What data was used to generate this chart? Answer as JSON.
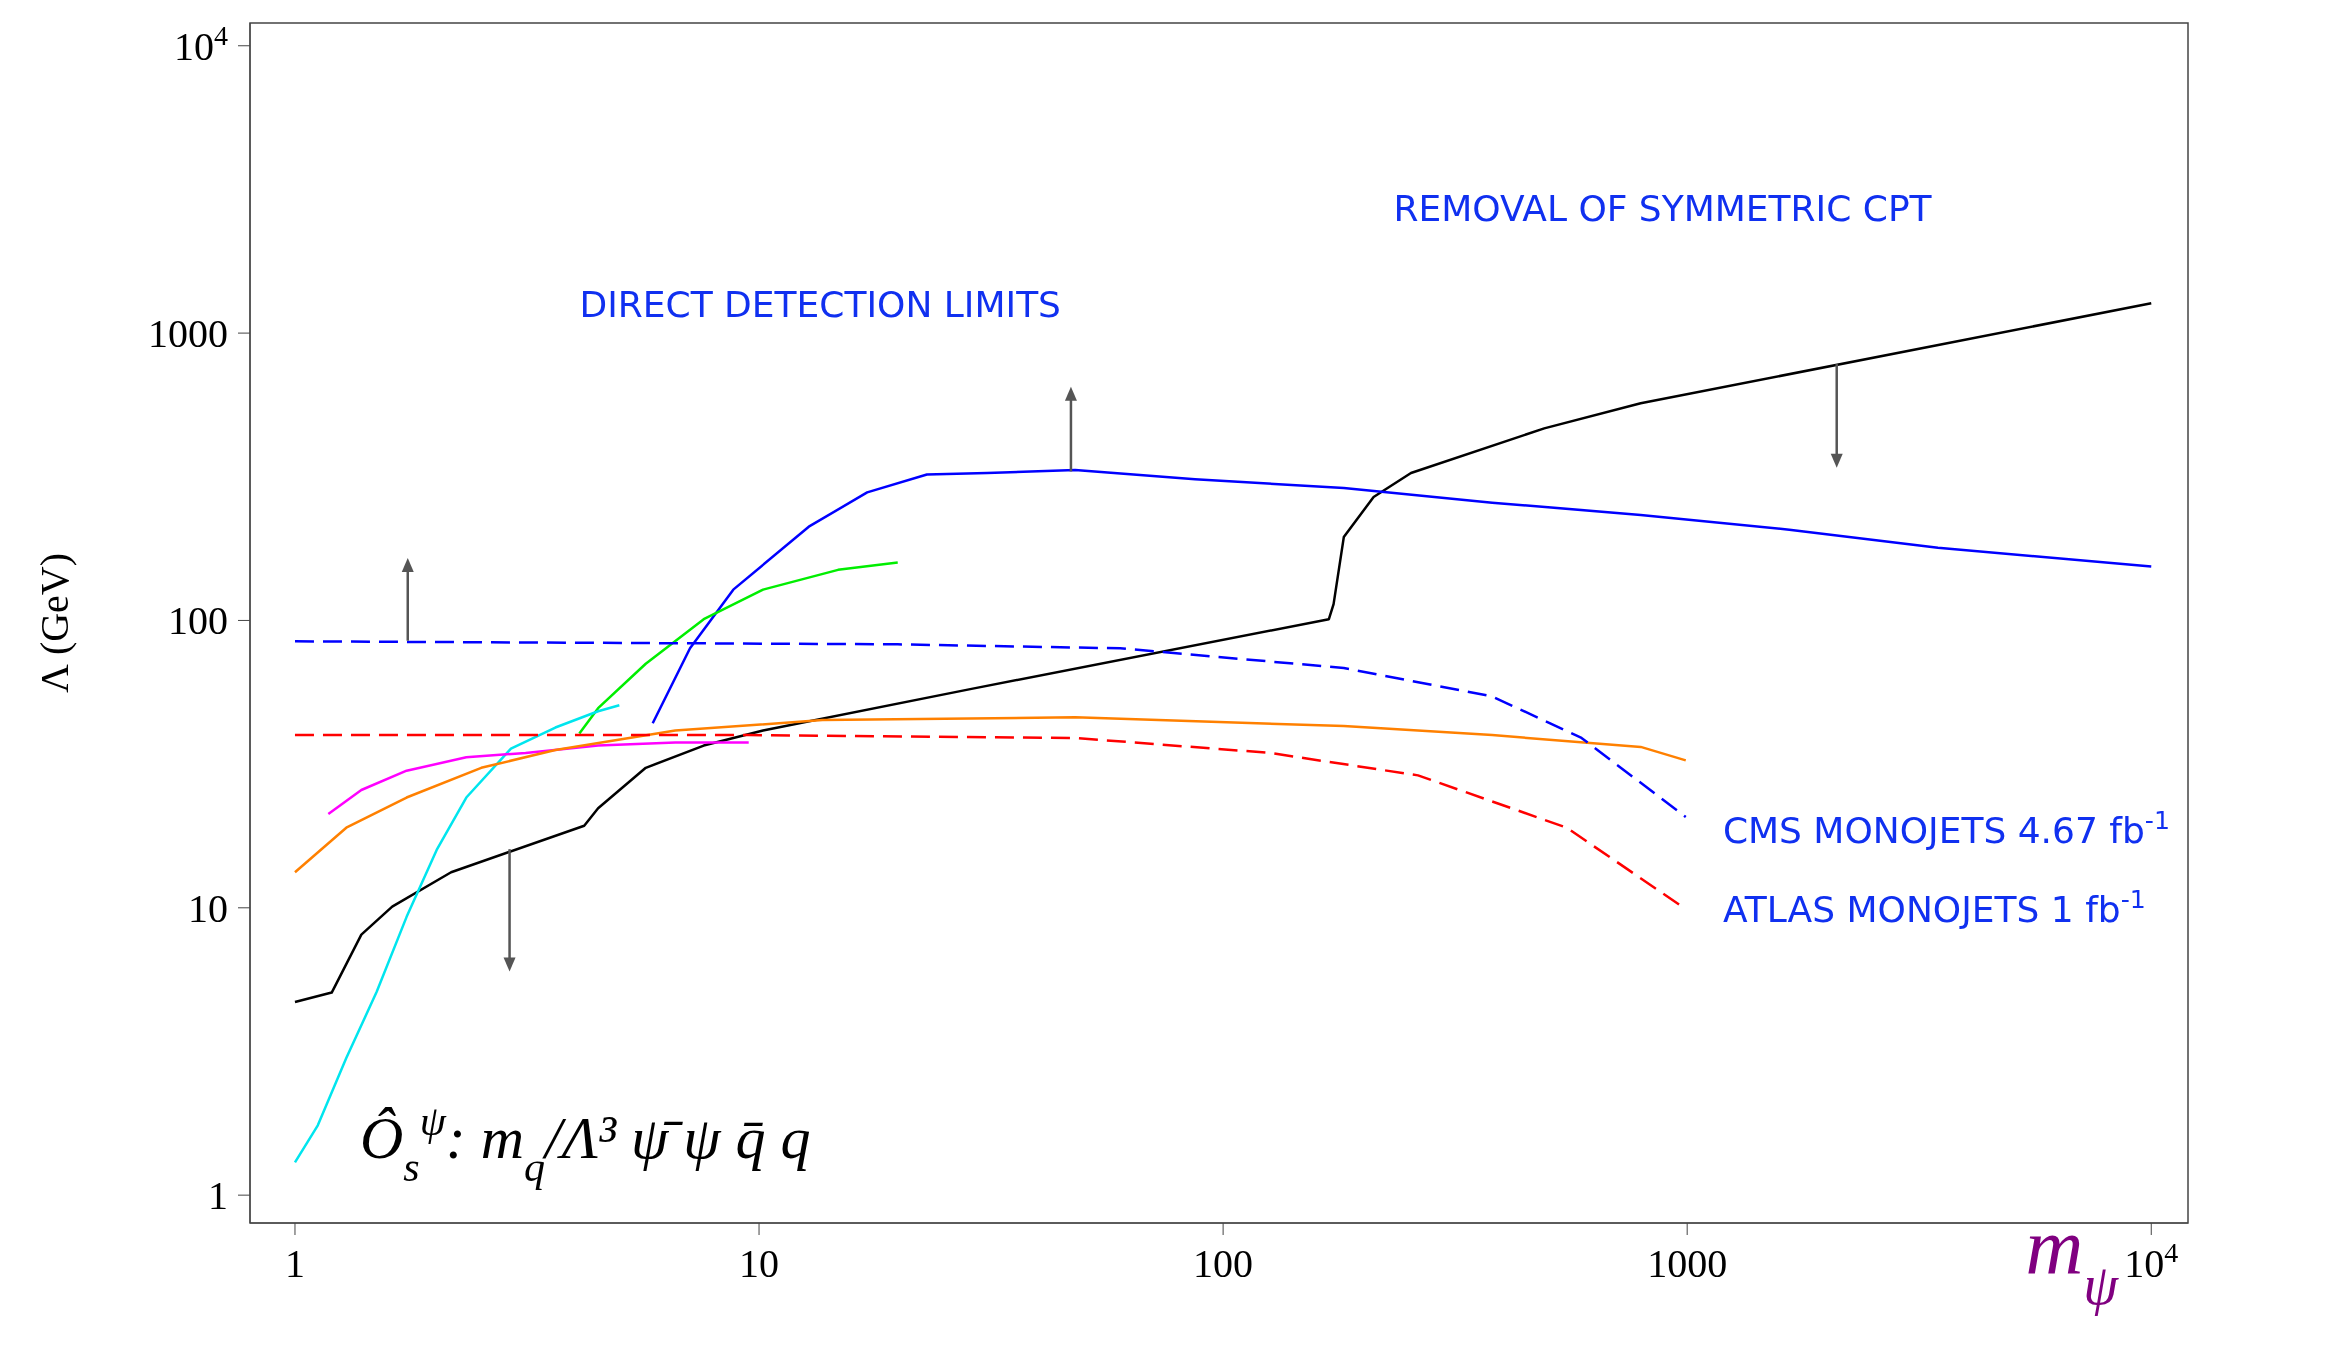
{
  "chart_data": {
    "type": "line",
    "xlabel": "m$_{ψ}$",
    "ylabel": "Λ (GeV)",
    "log": "xy",
    "marker": "none",
    "xlim": [
      0.8,
      12000
    ],
    "ylim": [
      0.8,
      12000
    ],
    "xticks": [
      1,
      10,
      100,
      1000,
      {
        "value": 10000,
        "label": "10$^{4}$"
      }
    ],
    "yticks": [
      1,
      10,
      100,
      1000,
      {
        "value": 10000,
        "label": "10$^{4}$"
      }
    ],
    "annotations": [
      "DIRECT DETECTION LIMITS",
      "REMOVAL OF SYMMETRIC CPT",
      "CMS MONOJETS 4.67 fb$^{-1}$",
      "ATLAS MONOJETS 1 fb$^{-1}$",
      "Ô$_{s}$$^{ψ}$:  m$_{q}$/Λ³  ψ̄ ψ q̄ q"
    ],
    "series": [
      {
        "color": "#000000",
        "line_style": "solid",
        "x": [
          1,
          1.2,
          1.39,
          1.62,
          2.17,
          4.2,
          4.5,
          5.7,
          7.6,
          10.2,
          28.7,
          169,
          173,
          182,
          211,
          254,
          492,
          794,
          10000
        ],
        "values": [
          4.7,
          5.07,
          8.07,
          10.1,
          13.3,
          19.3,
          22.2,
          30.7,
          36.7,
          41.4,
          57.8,
          101,
          114,
          195,
          269,
          326,
          466,
          570,
          1270
        ]
      },
      {
        "color": "#0000ff",
        "line_style": "solid",
        "x": [
          5.9,
          7.1,
          8.8,
          12.8,
          17.1,
          23,
          31,
          48,
          87,
          182,
          380,
          794,
          1660,
          3470,
          10000
        ],
        "values": [
          43.9,
          80,
          128,
          212,
          279,
          322,
          326,
          334,
          310,
          289,
          257,
          233,
          207,
          179,
          154
        ]
      },
      {
        "color": "#00ee00",
        "line_style": "solid",
        "x": [
          4.1,
          4.5,
          5.7,
          7.6,
          10.2,
          14.8,
          19.9
        ],
        "values": [
          40.4,
          49.5,
          70.7,
          101,
          128,
          150,
          159
        ]
      },
      {
        "color": "#00e5ee",
        "line_style": "solid",
        "x": [
          1,
          1.12,
          1.29,
          1.5,
          1.74,
          2.02,
          2.34,
          2.92,
          3.64,
          4.5,
          5
        ],
        "values": [
          1.3,
          1.75,
          3,
          5.1,
          9.3,
          15.9,
          24.2,
          35.8,
          42.4,
          48.3,
          50.7
        ]
      },
      {
        "color": "#ff00ff",
        "line_style": "solid",
        "x": [
          1.18,
          1.39,
          1.74,
          2.34,
          3.14,
          4.5,
          6.6,
          9.5
        ],
        "values": [
          21.2,
          25.7,
          30,
          33.4,
          34.6,
          36.7,
          37.6,
          37.6
        ]
      },
      {
        "color": "#ff8000",
        "line_style": "solid",
        "x": [
          1,
          1.29,
          1.74,
          2.52,
          3.64,
          6.6,
          13.7,
          48,
          182,
          380,
          794,
          993
        ],
        "values": [
          13.3,
          19,
          24.2,
          30.7,
          35.4,
          41.4,
          45,
          46,
          42.9,
          39.9,
          36.3,
          32.6
        ]
      },
      {
        "color": "#0000ff",
        "line_style": "dashed",
        "x": [
          1,
          19.9,
          60,
          182,
          380,
          592,
          993
        ],
        "values": [
          84.6,
          82.6,
          80,
          68.3,
          54.4,
          39,
          20.7
        ]
      },
      {
        "color": "#ff0000",
        "line_style": "dashed",
        "x": [
          1,
          9.5,
          48,
          126,
          263,
          550,
          993
        ],
        "values": [
          39.9,
          39.9,
          39,
          34.6,
          28.9,
          19,
          9.9
        ]
      }
    ]
  }
}
